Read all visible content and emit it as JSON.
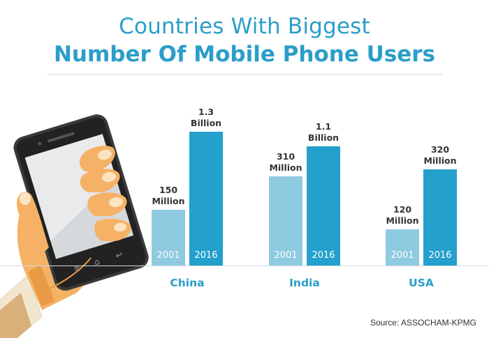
{
  "title": {
    "line1": "Countries With Biggest",
    "line2": "Number Of Mobile Phone Users"
  },
  "source": "Source: ASSOCHAM-KPMG",
  "colors": {
    "accent": "#2b9ec9",
    "bar_2001": "#8ecae0",
    "bar_2016": "#24a0cc"
  },
  "chart_data": {
    "type": "bar",
    "categories": [
      "China",
      "India",
      "USA"
    ],
    "series": [
      {
        "name": "2001",
        "values": [
          150000000,
          310000000,
          120000000
        ],
        "labels": [
          [
            "150",
            "Million"
          ],
          [
            "310",
            "Million"
          ],
          [
            "120",
            "Million"
          ]
        ]
      },
      {
        "name": "2016",
        "values": [
          1300000000,
          1100000000,
          320000000
        ],
        "labels": [
          [
            "1.3",
            "Billion"
          ],
          [
            "1.1",
            "Billion"
          ],
          [
            "320",
            "Million"
          ]
        ]
      }
    ],
    "title": "Countries With Biggest Number Of Mobile Phone Users",
    "xlabel": "",
    "ylabel": ""
  }
}
